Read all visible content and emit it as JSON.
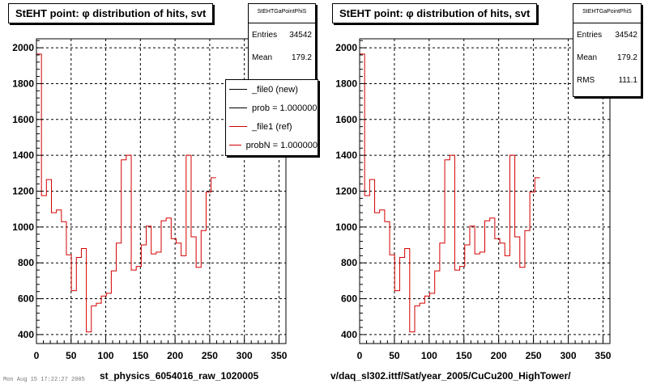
{
  "colors": {
    "frame": "#000000",
    "grid": "#000000",
    "ref_hist": "#d40000",
    "background": "#ffffff"
  },
  "footer": {
    "left_caption": "st_physics_6054016_raw_1020005",
    "right_caption": "v/daq_sl302.ittf/Sat/year_2005/CuCu200_HighTower/",
    "datestamp": "Mon Aug 15 17:22:27 2005"
  },
  "left_panel": {
    "title": "StEHT point:  φ distribution of hits, svt",
    "stats": {
      "name": "StEHTGaPointPhiS",
      "entries_label": "Entries",
      "entries": "34542",
      "mean_label": "Mean",
      "mean": "179.2"
    },
    "legend": [
      {
        "label": "_file0 (new)",
        "color": "#000000"
      },
      {
        "label": "prob = 1.000000",
        "color": "#000000"
      },
      {
        "label": "_file1 (ref)",
        "color": "#d40000"
      },
      {
        "label": "probN = 1.000000",
        "color": "#d40000"
      }
    ]
  },
  "right_panel": {
    "title": "StEHT point:  φ distribution of hits, svt",
    "stats": {
      "name": "StEHTGaPointPhiS",
      "entries_label": "Entries",
      "entries": "34542",
      "mean_label": "Mean",
      "mean": "179.2",
      "rms_label": "RMS",
      "rms": "111.1"
    }
  },
  "chart_data": [
    {
      "type": "histogram",
      "title": "StEHT point:  φ distribution of hits, svt",
      "xlim": [
        0,
        360
      ],
      "ylim": [
        350,
        2050
      ],
      "x_ticks": [
        "0",
        "50",
        "100",
        "150",
        "200",
        "250",
        "300",
        "350"
      ],
      "y_ticks": [
        "400",
        "600",
        "800",
        "1000",
        "1200",
        "1400",
        "1600",
        "1800",
        "2000"
      ],
      "grid": true,
      "legend_position": "top-right",
      "bin_width": 7.2,
      "series": [
        {
          "name": "_file1 (ref)",
          "values": [
            1965,
            1175,
            1265,
            1080,
            1095,
            1030,
            845,
            645,
            830,
            880,
            415,
            560,
            575,
            615,
            630,
            755,
            910,
            1375,
            1400,
            760,
            780,
            900,
            1005,
            850,
            860,
            1035,
            1050,
            935,
            910,
            840,
            1400,
            945,
            775,
            980,
            1195,
            1275
          ]
        }
      ]
    },
    {
      "type": "histogram",
      "title": "StEHT point:  φ distribution of hits, svt",
      "xlim": [
        0,
        360
      ],
      "ylim": [
        350,
        2050
      ],
      "x_ticks": [
        "0",
        "50",
        "100",
        "150",
        "200",
        "250",
        "300",
        "350"
      ],
      "y_ticks": [
        "400",
        "600",
        "800",
        "1000",
        "1200",
        "1400",
        "1600",
        "1800",
        "2000"
      ],
      "grid": true,
      "bin_width": 7.2,
      "series": [
        {
          "name": "_file1 (ref)",
          "values": [
            1965,
            1175,
            1265,
            1080,
            1095,
            1030,
            845,
            645,
            830,
            880,
            415,
            560,
            575,
            615,
            630,
            755,
            910,
            1375,
            1400,
            760,
            780,
            900,
            1005,
            850,
            860,
            1035,
            1050,
            935,
            910,
            840,
            1400,
            945,
            775,
            980,
            1195,
            1275
          ]
        }
      ]
    }
  ]
}
